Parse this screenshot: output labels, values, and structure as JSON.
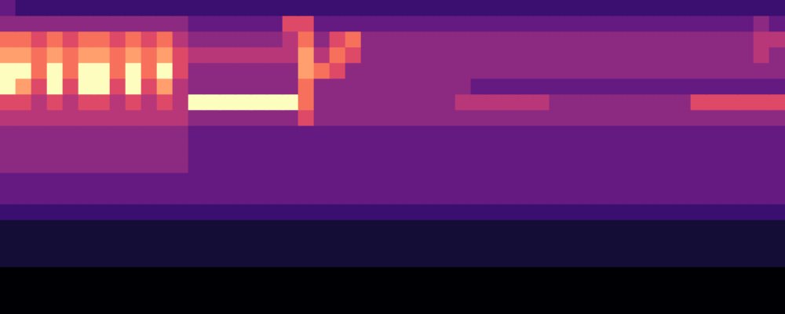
{
  "chart_data": {
    "type": "heatmap",
    "color": "magma",
    "grid": false,
    "tick_labels": false,
    "color_range": [
      0,
      9
    ],
    "cells": [
      [
        3,
        2,
        2,
        2,
        2,
        2,
        2,
        2,
        2,
        2,
        2,
        2,
        2,
        2,
        2,
        2,
        2,
        2,
        2,
        2,
        2,
        2,
        2,
        2,
        2,
        2,
        2,
        2,
        2,
        2,
        2,
        2,
        2,
        2,
        2,
        2,
        2,
        2,
        2,
        2,
        2,
        2,
        2,
        2,
        2,
        2,
        2,
        2,
        2,
        2
      ],
      [
        4,
        4,
        4,
        4,
        4,
        4,
        4,
        4,
        4,
        4,
        4,
        4,
        3,
        3,
        3,
        3,
        3,
        3,
        6,
        6,
        3,
        3,
        3,
        3,
        3,
        3,
        3,
        3,
        3,
        3,
        3,
        3,
        3,
        3,
        3,
        3,
        3,
        3,
        3,
        3,
        3,
        3,
        3,
        3,
        3,
        3,
        3,
        3,
        4,
        3
      ],
      [
        7,
        7,
        6,
        7,
        6,
        7,
        7,
        6,
        7,
        6,
        7,
        5,
        4,
        4,
        4,
        4,
        4,
        4,
        5,
        7,
        4,
        6,
        7,
        4,
        4,
        4,
        4,
        4,
        4,
        4,
        4,
        4,
        4,
        4,
        4,
        4,
        4,
        4,
        4,
        4,
        4,
        4,
        4,
        4,
        4,
        4,
        4,
        4,
        5,
        5
      ],
      [
        8,
        8,
        7,
        8,
        7,
        8,
        8,
        7,
        8,
        7,
        8,
        6,
        5,
        5,
        5,
        5,
        5,
        5,
        5,
        8,
        5,
        7,
        6,
        4,
        4,
        4,
        4,
        4,
        4,
        4,
        4,
        4,
        4,
        4,
        4,
        4,
        4,
        4,
        4,
        4,
        4,
        4,
        4,
        4,
        4,
        4,
        4,
        4,
        5,
        4
      ],
      [
        9,
        9,
        7,
        9,
        7,
        9,
        9,
        7,
        9,
        7,
        9,
        6,
        4,
        4,
        4,
        4,
        4,
        4,
        4,
        8,
        7,
        6,
        4,
        4,
        4,
        4,
        4,
        4,
        4,
        4,
        4,
        4,
        4,
        4,
        4,
        4,
        4,
        4,
        4,
        4,
        4,
        4,
        4,
        4,
        4,
        4,
        4,
        4,
        4,
        4
      ],
      [
        9,
        8,
        6,
        9,
        6,
        9,
        9,
        6,
        9,
        6,
        8,
        5,
        4,
        4,
        4,
        4,
        4,
        4,
        4,
        7,
        4,
        4,
        4,
        4,
        4,
        4,
        4,
        4,
        4,
        4,
        3,
        3,
        3,
        3,
        3,
        3,
        3,
        3,
        3,
        3,
        3,
        3,
        3,
        3,
        3,
        3,
        3,
        3,
        3,
        3
      ],
      [
        6,
        6,
        5,
        6,
        5,
        6,
        6,
        5,
        6,
        5,
        6,
        5,
        9,
        9,
        9,
        9,
        9,
        9,
        9,
        7,
        4,
        4,
        4,
        4,
        4,
        4,
        4,
        4,
        4,
        5,
        5,
        5,
        5,
        5,
        5,
        4,
        4,
        4,
        4,
        4,
        4,
        4,
        4,
        4,
        6,
        6,
        6,
        6,
        6,
        6
      ],
      [
        5,
        5,
        5,
        5,
        5,
        5,
        5,
        5,
        5,
        5,
        5,
        5,
        4,
        4,
        4,
        4,
        4,
        4,
        4,
        6,
        4,
        4,
        4,
        4,
        4,
        4,
        4,
        4,
        4,
        4,
        4,
        4,
        4,
        4,
        4,
        4,
        4,
        4,
        4,
        4,
        4,
        4,
        4,
        4,
        4,
        4,
        4,
        4,
        4,
        4
      ],
      [
        4,
        4,
        4,
        4,
        4,
        4,
        4,
        4,
        4,
        4,
        4,
        4,
        3,
        3,
        3,
        3,
        3,
        3,
        3,
        3,
        3,
        3,
        3,
        3,
        3,
        3,
        3,
        3,
        3,
        3,
        3,
        3,
        3,
        3,
        3,
        3,
        3,
        3,
        3,
        3,
        3,
        3,
        3,
        3,
        3,
        3,
        3,
        3,
        3,
        3
      ],
      [
        4,
        4,
        4,
        4,
        4,
        4,
        4,
        4,
        4,
        4,
        4,
        4,
        3,
        3,
        3,
        3,
        3,
        3,
        3,
        3,
        3,
        3,
        3,
        3,
        3,
        3,
        3,
        3,
        3,
        3,
        3,
        3,
        3,
        3,
        3,
        3,
        3,
        3,
        3,
        3,
        3,
        3,
        3,
        3,
        3,
        3,
        3,
        3,
        3,
        3
      ],
      [
        4,
        4,
        4,
        4,
        4,
        4,
        4,
        4,
        4,
        4,
        4,
        4,
        3,
        3,
        3,
        3,
        3,
        3,
        3,
        3,
        3,
        3,
        3,
        3,
        3,
        3,
        3,
        3,
        3,
        3,
        3,
        3,
        3,
        3,
        3,
        3,
        3,
        3,
        3,
        3,
        3,
        3,
        3,
        3,
        3,
        3,
        3,
        3,
        3,
        3
      ],
      [
        3,
        3,
        3,
        3,
        3,
        3,
        3,
        3,
        3,
        3,
        3,
        3,
        3,
        3,
        3,
        3,
        3,
        3,
        3,
        3,
        3,
        3,
        3,
        3,
        3,
        3,
        3,
        3,
        3,
        3,
        3,
        3,
        3,
        3,
        3,
        3,
        3,
        3,
        3,
        3,
        3,
        3,
        3,
        3,
        3,
        3,
        3,
        3,
        3,
        3
      ],
      [
        3,
        3,
        3,
        3,
        3,
        3,
        3,
        3,
        3,
        3,
        3,
        3,
        3,
        3,
        3,
        3,
        3,
        3,
        3,
        3,
        3,
        3,
        3,
        3,
        3,
        3,
        3,
        3,
        3,
        3,
        3,
        3,
        3,
        3,
        3,
        3,
        3,
        3,
        3,
        3,
        3,
        3,
        3,
        3,
        3,
        3,
        3,
        3,
        3,
        3
      ],
      [
        2,
        2,
        2,
        2,
        2,
        2,
        2,
        2,
        2,
        2,
        2,
        2,
        2,
        2,
        2,
        2,
        2,
        2,
        2,
        2,
        2,
        2,
        2,
        2,
        2,
        2,
        2,
        2,
        2,
        2,
        2,
        2,
        2,
        2,
        2,
        2,
        2,
        2,
        2,
        2,
        2,
        2,
        2,
        2,
        2,
        2,
        2,
        2,
        2,
        2
      ],
      [
        1,
        1,
        1,
        1,
        1,
        1,
        1,
        1,
        1,
        1,
        1,
        1,
        1,
        1,
        1,
        1,
        1,
        1,
        1,
        1,
        1,
        1,
        1,
        1,
        1,
        1,
        1,
        1,
        1,
        1,
        1,
        1,
        1,
        1,
        1,
        1,
        1,
        1,
        1,
        1,
        1,
        1,
        1,
        1,
        1,
        1,
        1,
        1,
        1,
        1
      ],
      [
        1,
        1,
        1,
        1,
        1,
        1,
        1,
        1,
        1,
        1,
        1,
        1,
        1,
        1,
        1,
        1,
        1,
        1,
        1,
        1,
        1,
        1,
        1,
        1,
        1,
        1,
        1,
        1,
        1,
        1,
        1,
        1,
        1,
        1,
        1,
        1,
        1,
        1,
        1,
        1,
        1,
        1,
        1,
        1,
        1,
        1,
        1,
        1,
        1,
        1
      ],
      [
        1,
        1,
        1,
        1,
        1,
        1,
        1,
        1,
        1,
        1,
        1,
        1,
        1,
        1,
        1,
        1,
        1,
        1,
        1,
        1,
        1,
        1,
        1,
        1,
        1,
        1,
        1,
        1,
        1,
        1,
        1,
        1,
        1,
        1,
        1,
        1,
        1,
        1,
        1,
        1,
        1,
        1,
        1,
        1,
        1,
        1,
        1,
        1,
        1,
        1
      ],
      [
        0,
        0,
        0,
        0,
        0,
        0,
        0,
        0,
        0,
        0,
        0,
        0,
        0,
        0,
        0,
        0,
        0,
        0,
        0,
        0,
        0,
        0,
        0,
        0,
        0,
        0,
        0,
        0,
        0,
        0,
        0,
        0,
        0,
        0,
        0,
        0,
        0,
        0,
        0,
        0,
        0,
        0,
        0,
        0,
        0,
        0,
        0,
        0,
        0,
        0
      ],
      [
        0,
        0,
        0,
        0,
        0,
        0,
        0,
        0,
        0,
        0,
        0,
        0,
        0,
        0,
        0,
        0,
        0,
        0,
        0,
        0,
        0,
        0,
        0,
        0,
        0,
        0,
        0,
        0,
        0,
        0,
        0,
        0,
        0,
        0,
        0,
        0,
        0,
        0,
        0,
        0,
        0,
        0,
        0,
        0,
        0,
        0,
        0,
        0,
        0,
        0
      ],
      [
        0,
        0,
        0,
        0,
        0,
        0,
        0,
        0,
        0,
        0,
        0,
        0,
        0,
        0,
        0,
        0,
        0,
        0,
        0,
        0,
        0,
        0,
        0,
        0,
        0,
        0,
        0,
        0,
        0,
        0,
        0,
        0,
        0,
        0,
        0,
        0,
        0,
        0,
        0,
        0,
        0,
        0,
        0,
        0,
        0,
        0,
        0,
        0,
        0,
        0
      ]
    ]
  }
}
